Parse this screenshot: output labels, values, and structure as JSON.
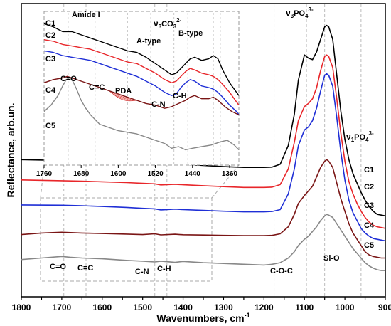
{
  "chart_data": [
    {
      "type": "line",
      "xlabel": "Wavenumbers, cm",
      "xlabel_sup": "-1",
      "ylabel": "Reflectance, arb.un.",
      "xlim": [
        1800,
        900
      ],
      "x_ticks": [
        1800,
        1750,
        1700,
        1650,
        1600,
        1550,
        1500,
        1450,
        1400,
        1350,
        1300,
        1250,
        1200,
        1150,
        1100,
        1050,
        1000,
        950,
        900
      ],
      "grid": false,
      "reference_lines_x": [
        1695,
        1640,
        1470,
        1440,
        1175,
        1095,
        1050,
        960
      ],
      "series": [
        {
          "name": "C1",
          "color": "#000000",
          "x": [
            1800,
            1700,
            1650,
            1600,
            1540,
            1500,
            1470,
            1455,
            1420,
            1400,
            1350,
            1300,
            1250,
            1200,
            1180,
            1160,
            1140,
            1125,
            1115,
            1100,
            1090,
            1080,
            1070,
            1060,
            1050,
            1045,
            1040,
            1030,
            1020,
            1010,
            1000,
            990,
            980,
            970,
            960,
            950,
            940,
            930,
            920,
            910,
            900
          ],
          "y": [
            0.61,
            0.605,
            0.602,
            0.598,
            0.593,
            0.588,
            0.585,
            0.578,
            0.583,
            0.58,
            0.573,
            0.565,
            0.56,
            0.56,
            0.562,
            0.58,
            0.7,
            0.9,
            1.12,
            1.28,
            1.26,
            1.25,
            1.3,
            1.38,
            1.46,
            1.47,
            1.46,
            1.38,
            1.15,
            0.92,
            0.74,
            0.61,
            0.52,
            0.46,
            0.4,
            0.35,
            0.31,
            0.28,
            0.26,
            0.255,
            0.25
          ]
        },
        {
          "name": "C2",
          "color": "#e8262a",
          "x": [
            1800,
            1700,
            1650,
            1600,
            1540,
            1500,
            1470,
            1455,
            1420,
            1400,
            1350,
            1300,
            1250,
            1200,
            1180,
            1160,
            1140,
            1125,
            1115,
            1100,
            1090,
            1080,
            1070,
            1060,
            1050,
            1045,
            1040,
            1030,
            1020,
            1010,
            1000,
            990,
            980,
            970,
            960,
            950,
            940,
            930,
            920,
            910,
            900
          ],
          "y": [
            0.48,
            0.475,
            0.472,
            0.468,
            0.463,
            0.458,
            0.455,
            0.448,
            0.452,
            0.449,
            0.443,
            0.437,
            0.432,
            0.432,
            0.434,
            0.45,
            0.55,
            0.72,
            0.86,
            0.95,
            0.97,
            1.0,
            1.07,
            1.18,
            1.27,
            1.28,
            1.27,
            1.2,
            1.0,
            0.78,
            0.6,
            0.47,
            0.39,
            0.33,
            0.28,
            0.24,
            0.21,
            0.19,
            0.18,
            0.175,
            0.17
          ]
        },
        {
          "name": "C3",
          "color": "#1f2fd6",
          "x": [
            1800,
            1700,
            1650,
            1600,
            1540,
            1500,
            1470,
            1455,
            1420,
            1400,
            1350,
            1300,
            1250,
            1200,
            1180,
            1160,
            1140,
            1125,
            1115,
            1100,
            1090,
            1080,
            1070,
            1060,
            1050,
            1045,
            1040,
            1030,
            1020,
            1010,
            1000,
            990,
            980,
            970,
            960,
            950,
            940,
            930,
            920,
            910,
            900
          ],
          "y": [
            0.32,
            0.318,
            0.315,
            0.31,
            0.304,
            0.298,
            0.295,
            0.288,
            0.293,
            0.29,
            0.285,
            0.28,
            0.276,
            0.276,
            0.278,
            0.29,
            0.39,
            0.55,
            0.7,
            0.8,
            0.82,
            0.86,
            0.94,
            1.05,
            1.15,
            1.16,
            1.15,
            1.08,
            0.88,
            0.66,
            0.48,
            0.35,
            0.27,
            0.22,
            0.17,
            0.14,
            0.12,
            0.105,
            0.1,
            0.095,
            0.09
          ]
        },
        {
          "name": "C4",
          "color": "#7a1515",
          "x": [
            1800,
            1750,
            1700,
            1650,
            1600,
            1540,
            1500,
            1470,
            1455,
            1420,
            1400,
            1350,
            1300,
            1250,
            1200,
            1180,
            1160,
            1140,
            1125,
            1115,
            1100,
            1090,
            1080,
            1070,
            1060,
            1050,
            1045,
            1040,
            1030,
            1020,
            1010,
            1000,
            990,
            980,
            970,
            960,
            950,
            940,
            930,
            920,
            910,
            900
          ],
          "y": [
            0.13,
            0.14,
            0.145,
            0.14,
            0.137,
            0.133,
            0.13,
            0.135,
            0.128,
            0.132,
            0.129,
            0.127,
            0.125,
            0.123,
            0.123,
            0.125,
            0.135,
            0.18,
            0.26,
            0.33,
            0.38,
            0.41,
            0.44,
            0.5,
            0.56,
            0.6,
            0.61,
            0.6,
            0.56,
            0.46,
            0.36,
            0.28,
            0.2,
            0.14,
            0.1,
            0.06,
            0.02,
            0.0,
            -0.01,
            -0.015,
            -0.02,
            -0.02
          ]
        },
        {
          "name": "C5",
          "color": "#888888",
          "x": [
            1800,
            1750,
            1700,
            1680,
            1650,
            1600,
            1540,
            1500,
            1470,
            1455,
            1420,
            1400,
            1350,
            1300,
            1250,
            1200,
            1180,
            1160,
            1140,
            1125,
            1115,
            1100,
            1090,
            1080,
            1070,
            1060,
            1050,
            1045,
            1040,
            1030,
            1020,
            1010,
            1000,
            990,
            980,
            970,
            960,
            950,
            940,
            930,
            920,
            910,
            900
          ],
          "y": [
            -0.03,
            -0.02,
            -0.01,
            -0.015,
            -0.02,
            -0.025,
            -0.035,
            -0.04,
            -0.045,
            -0.04,
            -0.048,
            -0.042,
            -0.05,
            -0.055,
            -0.06,
            -0.065,
            -0.06,
            -0.05,
            -0.02,
            0.02,
            0.06,
            0.1,
            0.12,
            0.15,
            0.18,
            0.22,
            0.25,
            0.26,
            0.255,
            0.24,
            0.2,
            0.16,
            0.12,
            0.08,
            0.04,
            0.01,
            -0.02,
            -0.05,
            -0.07,
            -0.085,
            -0.095,
            -0.1,
            -0.1
          ]
        }
      ],
      "annotations": [
        {
          "text": "ν",
          "sub": "3",
          "main": "PO",
          "sub2": "4",
          "sup": "3-"
        },
        {
          "text": "ν",
          "sub": "1",
          "main": "PO",
          "sub2": "4",
          "sup": "3-"
        },
        {
          "text": "Si-O"
        },
        {
          "text": "C-O-C"
        },
        {
          "text": "C=O"
        },
        {
          "text": "C=C"
        },
        {
          "text": "C-N"
        },
        {
          "text": "C-H"
        }
      ]
    },
    {
      "type": "line",
      "role": "inset",
      "xlim": [
        1760,
        1340
      ],
      "x_ticks": [
        1760,
        1680,
        1600,
        1520,
        1440,
        1360
      ],
      "reference_lines_x": [
        1708,
        1650,
        1580,
        1530,
        1480,
        1450,
        1395,
        1380
      ],
      "highlight_band": {
        "label": "PDA",
        "x": [
          1620,
          1560
        ]
      },
      "series": [
        {
          "name": "C1",
          "color": "#000000",
          "x": [
            1760,
            1740,
            1720,
            1700,
            1680,
            1660,
            1640,
            1620,
            1600,
            1580,
            1560,
            1540,
            1520,
            1500,
            1485,
            1475,
            1465,
            1455,
            1445,
            1435,
            1420,
            1405,
            1395,
            1385,
            1375,
            1360,
            1345,
            1340
          ],
          "y": [
            0.95,
            0.93,
            0.9,
            0.9,
            0.88,
            0.86,
            0.84,
            0.82,
            0.8,
            0.78,
            0.77,
            0.74,
            0.7,
            0.66,
            0.63,
            0.64,
            0.67,
            0.7,
            0.73,
            0.74,
            0.72,
            0.73,
            0.75,
            0.73,
            0.66,
            0.58,
            0.52,
            0.5
          ]
        },
        {
          "name": "C2",
          "color": "#e8262a",
          "x": [
            1760,
            1740,
            1720,
            1700,
            1680,
            1660,
            1640,
            1620,
            1600,
            1580,
            1560,
            1540,
            1520,
            1500,
            1485,
            1475,
            1465,
            1455,
            1445,
            1435,
            1420,
            1405,
            1395,
            1385,
            1375,
            1360,
            1345,
            1340
          ],
          "y": [
            0.85,
            0.84,
            0.82,
            0.81,
            0.8,
            0.79,
            0.77,
            0.75,
            0.73,
            0.71,
            0.7,
            0.67,
            0.64,
            0.6,
            0.58,
            0.59,
            0.62,
            0.65,
            0.67,
            0.66,
            0.64,
            0.63,
            0.62,
            0.6,
            0.57,
            0.52,
            0.46,
            0.44
          ]
        },
        {
          "name": "C3",
          "color": "#1f2fd6",
          "x": [
            1760,
            1740,
            1720,
            1700,
            1680,
            1660,
            1640,
            1620,
            1600,
            1580,
            1560,
            1540,
            1520,
            1500,
            1485,
            1475,
            1465,
            1455,
            1445,
            1435,
            1420,
            1405,
            1395,
            1385,
            1375,
            1360,
            1345,
            1340
          ],
          "y": [
            0.78,
            0.77,
            0.75,
            0.74,
            0.73,
            0.72,
            0.7,
            0.68,
            0.66,
            0.64,
            0.62,
            0.59,
            0.56,
            0.52,
            0.5,
            0.51,
            0.55,
            0.58,
            0.6,
            0.59,
            0.56,
            0.55,
            0.54,
            0.52,
            0.49,
            0.44,
            0.4,
            0.38
          ]
        },
        {
          "name": "C4",
          "color": "#7a1515",
          "x": [
            1760,
            1740,
            1720,
            1710,
            1700,
            1690,
            1680,
            1660,
            1640,
            1620,
            1600,
            1580,
            1560,
            1540,
            1520,
            1500,
            1485,
            1470,
            1455,
            1445,
            1435,
            1420,
            1405,
            1395,
            1385,
            1370,
            1355,
            1340
          ],
          "y": [
            0.58,
            0.6,
            0.61,
            0.62,
            0.61,
            0.6,
            0.59,
            0.57,
            0.55,
            0.53,
            0.51,
            0.49,
            0.47,
            0.45,
            0.44,
            0.42,
            0.43,
            0.45,
            0.47,
            0.49,
            0.5,
            0.48,
            0.48,
            0.49,
            0.47,
            0.43,
            0.4,
            0.38
          ]
        },
        {
          "name": "C5",
          "color": "#888888",
          "x": [
            1760,
            1745,
            1730,
            1720,
            1712,
            1705,
            1698,
            1690,
            1680,
            1670,
            1660,
            1650,
            1640,
            1620,
            1600,
            1580,
            1560,
            1540,
            1520,
            1500,
            1485,
            1470,
            1455,
            1440,
            1420,
            1400,
            1380,
            1365,
            1350,
            1340
          ],
          "y": [
            0.4,
            0.44,
            0.5,
            0.56,
            0.6,
            0.61,
            0.59,
            0.54,
            0.47,
            0.42,
            0.38,
            0.35,
            0.32,
            0.3,
            0.28,
            0.27,
            0.26,
            0.24,
            0.22,
            0.2,
            0.17,
            0.18,
            0.16,
            0.17,
            0.18,
            0.19,
            0.21,
            0.22,
            0.19,
            0.16
          ]
        }
      ],
      "annotations": [
        {
          "text": "Amide I"
        },
        {
          "text": "ν",
          "sub": "3",
          "main": "CO",
          "sub2": "3",
          "sup": "2-"
        },
        {
          "text": "A-type"
        },
        {
          "text": "B-type"
        },
        {
          "text": "C=O"
        },
        {
          "text": "C=C"
        },
        {
          "text": "PDA"
        },
        {
          "text": "C-N"
        },
        {
          "text": "C-H"
        }
      ]
    }
  ],
  "ui": {
    "main": {
      "xlabel": "Wavenumbers, cm",
      "xlabel_sup": "-1",
      "ylabel": "Reflectance, arb.un.",
      "nu3_po4": {
        "a": "ν",
        "b": "3",
        "c": "PO",
        "d": "4",
        "e": "3-"
      },
      "nu1_po4": {
        "a": "ν",
        "b": "1",
        "c": "PO",
        "d": "4",
        "e": "3-"
      },
      "si_o": "Si-O",
      "c_o_c": "C-O-C",
      "c_eq_o": "C=O",
      "c_eq_c": "C=C",
      "c_n": "C-N",
      "c_h": "C-H",
      "c1": "C1",
      "c2": "C2",
      "c3": "C3",
      "c4": "C4",
      "c5": "C5"
    },
    "inset": {
      "amide": "Amide I",
      "nu3_co3": {
        "a": "ν",
        "b": "3",
        "c": "CO",
        "d": "3",
        "e": "2-"
      },
      "a_type": "A-type",
      "b_type": "B-type",
      "c_eq_o": "C=O",
      "c_eq_c": "C=C",
      "pda": "PDA",
      "c_n": "C-N",
      "c_h": "C-H",
      "c1": "C1",
      "c2": "C2",
      "c3": "C3",
      "c4": "C4",
      "c5": "C5"
    }
  }
}
